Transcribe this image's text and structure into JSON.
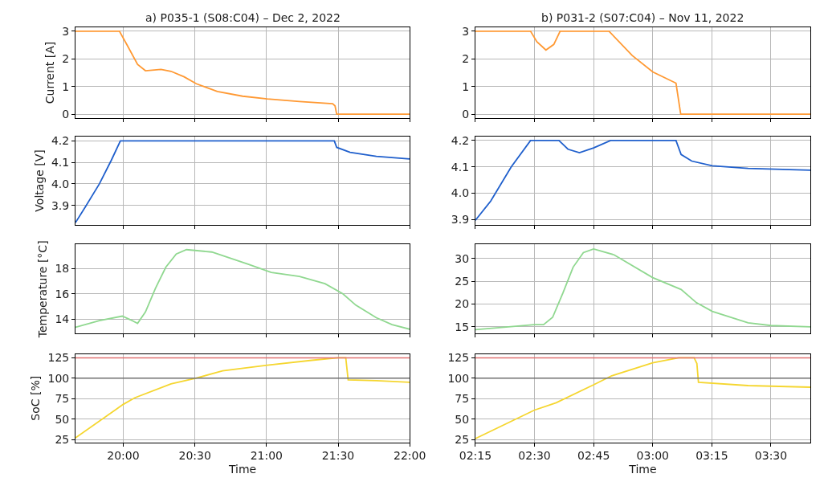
{
  "chart_data": [
    {
      "type": "line",
      "title": "a) P035-1 (S08:C04) – Dec 2, 2022",
      "ylabel": "Current [A]",
      "grid": true,
      "tick_labels": "y",
      "x": [
        "2022-12-02T19:40",
        "2022-12-02T19:58:24",
        "2022-12-02T20:01:36",
        "2022-12-02T20:06",
        "2022-12-02T20:09:18",
        "2022-12-02T20:15:48",
        "2022-12-02T20:20",
        "2022-12-02T20:25:30",
        "2022-12-02T20:30:36",
        "2022-12-02T20:39:24",
        "2022-12-02T20:50",
        "2022-12-02T21:00:18",
        "2022-12-02T21:13:48",
        "2022-12-02T21:27:42",
        "2022-12-02T21:28:42",
        "2022-12-02T21:29:24",
        "2022-12-02T22:00"
      ],
      "series": [
        {
          "color": "#ff9933",
          "values": [
            3,
            3,
            2.5,
            1.8,
            1.57,
            1.62,
            1.55,
            1.35,
            1.1,
            0.82,
            0.65,
            0.55,
            0.46,
            0.38,
            0.3,
            0,
            0
          ]
        }
      ],
      "xlim": [
        "2022-12-02T19:40",
        "2022-12-02T22:00"
      ],
      "xticks": [
        {
          "value": "2022-12-02T20:00",
          "label": null
        },
        {
          "value": "2022-12-02T20:30",
          "label": null
        },
        {
          "value": "2022-12-02T21:00",
          "label": null
        },
        {
          "value": "2022-12-02T21:30",
          "label": null
        },
        {
          "value": "2022-12-02T22:00",
          "label": null
        }
      ],
      "ylim": [
        -0.15,
        3.15
      ],
      "yticks": [
        0,
        1,
        2,
        3
      ]
    },
    {
      "type": "line",
      "title": "b) P031-2 (S07:C04) – Nov 11, 2022",
      "grid": true,
      "tick_labels": "y",
      "x": [
        "2022-11-11T02:15",
        "2022-11-11T02:29",
        "2022-11-11T02:30:36",
        "2022-11-11T02:32:54",
        "2022-11-11T02:34:54",
        "2022-11-11T02:36:30",
        "2022-11-11T02:48:54",
        "2022-11-11T02:54:48",
        "2022-11-11T03:00",
        "2022-11-11T03:05:54",
        "2022-11-11T03:07:06",
        "2022-11-11T03:40"
      ],
      "series": [
        {
          "color": "#ff9933",
          "values": [
            3,
            3,
            2.62,
            2.32,
            2.52,
            3,
            3,
            2.12,
            1.53,
            1.12,
            0,
            0
          ]
        }
      ],
      "xlim": [
        "2022-11-11T02:15",
        "2022-11-11T03:40"
      ],
      "xticks": [
        {
          "value": "2022-11-11T02:15",
          "label": null
        },
        {
          "value": "2022-11-11T02:30",
          "label": null
        },
        {
          "value": "2022-11-11T02:45",
          "label": null
        },
        {
          "value": "2022-11-11T03:00",
          "label": null
        },
        {
          "value": "2022-11-11T03:15",
          "label": null
        },
        {
          "value": "2022-11-11T03:30",
          "label": null
        }
      ],
      "ylim": [
        -0.15,
        3.15
      ],
      "yticks": [
        0,
        1,
        2,
        3
      ]
    },
    {
      "type": "line",
      "ylabel": "Voltage [V]",
      "grid": true,
      "tick_labels": "y",
      "x": [
        "2022-12-02T19:40",
        "2022-12-02T19:44:30",
        "2022-12-02T19:50",
        "2022-12-02T19:55",
        "2022-12-02T19:58:48",
        "2022-12-02T21:28:24",
        "2022-12-02T21:29:24",
        "2022-12-02T21:35",
        "2022-12-02T21:46",
        "2022-12-02T22:00"
      ],
      "series": [
        {
          "color": "#1f5fcc",
          "values": [
            3.82,
            3.9,
            4.0,
            4.11,
            4.2,
            4.2,
            4.17,
            4.147,
            4.128,
            4.116
          ]
        }
      ],
      "xlim": [
        "2022-12-02T19:40",
        "2022-12-02T22:00"
      ],
      "xticks": [
        {
          "value": "2022-12-02T20:00",
          "label": null
        },
        {
          "value": "2022-12-02T20:30",
          "label": null
        },
        {
          "value": "2022-12-02T21:00",
          "label": null
        },
        {
          "value": "2022-12-02T21:30",
          "label": null
        },
        {
          "value": "2022-12-02T22:00",
          "label": null
        }
      ],
      "ylim": [
        3.81,
        4.22
      ],
      "yticks": [
        {
          "value": 3.9,
          "label": "3.9"
        },
        {
          "value": 4.0,
          "label": "4.0"
        },
        {
          "value": 4.1,
          "label": "4.1"
        },
        {
          "value": 4.2,
          "label": "4.2"
        }
      ]
    },
    {
      "type": "line",
      "grid": true,
      "tick_labels": "y",
      "x": [
        "2022-11-11T02:15",
        "2022-11-11T02:18:54",
        "2022-11-11T02:24:06",
        "2022-11-11T02:29",
        "2022-11-11T02:36:12",
        "2022-11-11T02:38:30",
        "2022-11-11T02:41:24",
        "2022-11-11T02:45",
        "2022-11-11T02:49:18",
        "2022-11-11T03:05:54",
        "2022-11-11T03:07:12",
        "2022-11-11T03:09:54",
        "2022-11-11T03:15:06",
        "2022-11-11T03:24:12",
        "2022-11-11T03:40"
      ],
      "series": [
        {
          "color": "#1f5fcc",
          "values": [
            3.897,
            3.97,
            4.1,
            4.2,
            4.2,
            4.167,
            4.154,
            4.172,
            4.2,
            4.2,
            4.147,
            4.122,
            4.104,
            4.094,
            4.087
          ]
        }
      ],
      "xlim": [
        "2022-11-11T02:15",
        "2022-11-11T03:40"
      ],
      "xticks": [
        {
          "value": "2022-11-11T02:15",
          "label": null
        },
        {
          "value": "2022-11-11T02:30",
          "label": null
        },
        {
          "value": "2022-11-11T02:45",
          "label": null
        },
        {
          "value": "2022-11-11T03:00",
          "label": null
        },
        {
          "value": "2022-11-11T03:15",
          "label": null
        },
        {
          "value": "2022-11-11T03:30",
          "label": null
        }
      ],
      "ylim": [
        3.88,
        4.215
      ],
      "yticks": [
        {
          "value": 3.9,
          "label": "3.9"
        },
        {
          "value": 4.0,
          "label": "4.0"
        },
        {
          "value": 4.1,
          "label": "4.1"
        },
        {
          "value": 4.2,
          "label": "4.2"
        }
      ]
    },
    {
      "type": "line",
      "ylabel": "Temperature [°C]",
      "grid": true,
      "tick_labels": "y",
      "x": [
        "2022-12-02T19:40",
        "2022-12-02T19:50",
        "2022-12-02T19:59:36",
        "2022-12-02T20:03",
        "2022-12-02T20:06",
        "2022-12-02T20:09:18",
        "2022-12-02T20:13:30",
        "2022-12-02T20:17:48",
        "2022-12-02T20:22:12",
        "2022-12-02T20:26:30",
        "2022-12-02T20:37:06",
        "2022-12-02T20:52:18",
        "2022-12-02T21:02",
        "2022-12-02T21:13:48",
        "2022-12-02T21:24:30",
        "2022-12-02T21:32",
        "2022-12-02T21:37:24",
        "2022-12-02T21:46",
        "2022-12-02T21:52:36",
        "2022-12-02T22:00"
      ],
      "series": [
        {
          "color": "#90d890",
          "values": [
            13.35,
            13.87,
            14.23,
            13.94,
            13.65,
            14.56,
            16.44,
            18.1,
            19.15,
            19.5,
            19.31,
            18.35,
            17.69,
            17.37,
            16.8,
            16.0,
            15.1,
            14.1,
            13.56,
            13.19
          ]
        }
      ],
      "xlim": [
        "2022-12-02T19:40",
        "2022-12-02T22:00"
      ],
      "xticks": [
        {
          "value": "2022-12-02T20:00",
          "label": null
        },
        {
          "value": "2022-12-02T20:30",
          "label": null
        },
        {
          "value": "2022-12-02T21:00",
          "label": null
        },
        {
          "value": "2022-12-02T21:30",
          "label": null
        },
        {
          "value": "2022-12-02T22:00",
          "label": null
        }
      ],
      "ylim": [
        12.85,
        19.9
      ],
      "yticks": [
        14,
        16,
        18
      ]
    },
    {
      "type": "line",
      "grid": true,
      "tick_labels": "y",
      "x": [
        "2022-11-11T02:15",
        "2022-11-11T02:30",
        "2022-11-11T02:32:18",
        "2022-11-11T02:34:36",
        "2022-11-11T02:37:12",
        "2022-11-11T02:39:48",
        "2022-11-11T02:42:24",
        "2022-11-11T02:45",
        "2022-11-11T02:50:12",
        "2022-11-11T03:00",
        "2022-11-11T03:07:12",
        "2022-11-11T03:11:06",
        "2022-11-11T03:15:06",
        "2022-11-11T03:24:12",
        "2022-11-11T03:30",
        "2022-11-11T03:40"
      ],
      "series": [
        {
          "color": "#90d890",
          "values": [
            14.4,
            15.5,
            15.5,
            17.1,
            22.4,
            28.1,
            31.3,
            32.1,
            30.8,
            25.8,
            23.2,
            20.3,
            18.4,
            15.9,
            15.3,
            15.0
          ]
        }
      ],
      "xlim": [
        "2022-11-11T02:15",
        "2022-11-11T03:40"
      ],
      "xticks": [
        {
          "value": "2022-11-11T02:15",
          "label": null
        },
        {
          "value": "2022-11-11T02:30",
          "label": null
        },
        {
          "value": "2022-11-11T02:45",
          "label": null
        },
        {
          "value": "2022-11-11T03:00",
          "label": null
        },
        {
          "value": "2022-11-11T03:15",
          "label": null
        },
        {
          "value": "2022-11-11T03:30",
          "label": null
        }
      ],
      "ylim": [
        13.55,
        33.05
      ],
      "yticks": [
        15,
        20,
        25,
        30
      ]
    },
    {
      "type": "line",
      "ylabel": "SoC [%]",
      "xlabel": "Time",
      "grid": true,
      "x": [
        "2022-12-02T19:40",
        "2022-12-02T20:00",
        "2022-12-02T20:04:48",
        "2022-12-02T20:20",
        "2022-12-02T20:30:18",
        "2022-12-02T20:41:36",
        "2022-12-02T21:00:18",
        "2022-12-02T21:19",
        "2022-12-02T21:30",
        "2022-12-02T21:33:12",
        "2022-12-02T21:34:12",
        "2022-12-02T21:46",
        "2022-12-02T22:00"
      ],
      "series": [
        {
          "color": "#f5d630",
          "values": [
            27,
            68,
            76,
            93,
            100,
            109,
            116,
            122,
            125,
            125,
            98,
            97,
            95
          ]
        }
      ],
      "xlim": [
        "2022-12-02T19:40",
        "2022-12-02T22:00"
      ],
      "xticks": [
        {
          "value": "2022-12-02T20:00",
          "label": "20:00"
        },
        {
          "value": "2022-12-02T20:30",
          "label": "20:30"
        },
        {
          "value": "2022-12-02T21:00",
          "label": "21:00"
        },
        {
          "value": "2022-12-02T21:30",
          "label": "21:30"
        },
        {
          "value": "2022-12-02T22:00",
          "label": "22:00"
        }
      ],
      "ylim": [
        21.5,
        129.5
      ],
      "yticks": [
        25,
        50,
        75,
        100,
        125
      ],
      "ref_lines": [
        {
          "axis": "y",
          "value": 125,
          "color": "#e07070"
        },
        {
          "axis": "y",
          "value": 100,
          "color": "#707070"
        }
      ]
    },
    {
      "type": "line",
      "xlabel": "Time",
      "grid": true,
      "x": [
        "2022-11-11T02:15",
        "2022-11-11T02:30",
        "2022-11-11T02:35:30",
        "2022-11-11T02:45",
        "2022-11-11T02:49:36",
        "2022-11-11T03:00",
        "2022-11-11T03:06:36",
        "2022-11-11T03:10:30",
        "2022-11-11T03:11:12",
        "2022-11-11T03:11:36",
        "2022-11-11T03:24:12",
        "2022-11-11T03:40"
      ],
      "series": [
        {
          "color": "#f5d630",
          "values": [
            26,
            61,
            70,
            92,
            103,
            119,
            125,
            125,
            118,
            95,
            91,
            89
          ]
        }
      ],
      "xlim": [
        "2022-11-11T02:15",
        "2022-11-11T03:40"
      ],
      "xticks": [
        {
          "value": "2022-11-11T02:15",
          "label": "02:15"
        },
        {
          "value": "2022-11-11T02:30",
          "label": "02:30"
        },
        {
          "value": "2022-11-11T02:45",
          "label": "02:45"
        },
        {
          "value": "2022-11-11T03:00",
          "label": "03:00"
        },
        {
          "value": "2022-11-11T03:15",
          "label": "03:15"
        },
        {
          "value": "2022-11-11T03:30",
          "label": "03:30"
        }
      ],
      "ylim": [
        21.5,
        129.5
      ],
      "yticks": [
        25,
        50,
        75,
        100,
        125
      ],
      "ref_lines": [
        {
          "axis": "y",
          "value": 125,
          "color": "#e07070"
        },
        {
          "axis": "y",
          "value": 100,
          "color": "#707070"
        }
      ]
    }
  ]
}
